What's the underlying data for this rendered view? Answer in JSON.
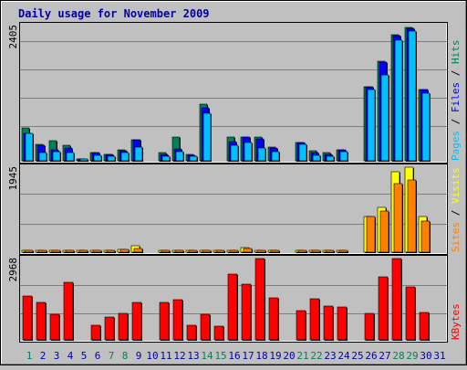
{
  "chart_data": [
    {
      "type": "bar",
      "title": "Daily usage for November 2009",
      "categories": [
        "1",
        "2",
        "3",
        "4",
        "5",
        "6",
        "7",
        "8",
        "9",
        "10",
        "11",
        "12",
        "13",
        "14",
        "15",
        "16",
        "17",
        "18",
        "19",
        "20",
        "21",
        "22",
        "23",
        "24",
        "25",
        "26",
        "27",
        "28",
        "29",
        "30",
        "31"
      ],
      "weekend_days": [
        "1",
        "7",
        "8",
        "14",
        "15",
        "21",
        "22",
        "28",
        "29"
      ],
      "ylabel_parts": [
        "Pages",
        "Files",
        "Hits"
      ],
      "max_label": "2405",
      "ylim": [
        0,
        2405
      ],
      "series": [
        {
          "name": "Hits",
          "color": "#00805c",
          "values": [
            590,
            290,
            360,
            280,
            12,
            150,
            110,
            200,
            370,
            0,
            140,
            430,
            110,
            1010,
            0,
            420,
            430,
            430,
            240,
            0,
            320,
            180,
            140,
            200,
            0,
            1320,
            1770,
            2240,
            2370,
            1260,
            0
          ]
        },
        {
          "name": "Files",
          "color": "#0000ff",
          "values": [
            480,
            270,
            200,
            230,
            12,
            140,
            110,
            180,
            370,
            0,
            110,
            210,
            100,
            940,
            0,
            340,
            420,
            390,
            230,
            0,
            320,
            150,
            120,
            200,
            0,
            1320,
            1760,
            2230,
            2360,
            1260,
            0
          ]
        },
        {
          "name": "Pages",
          "color": "#00c0ff",
          "values": [
            490,
            150,
            160,
            140,
            5,
            90,
            80,
            150,
            250,
            0,
            80,
            170,
            80,
            840,
            0,
            280,
            330,
            220,
            160,
            0,
            290,
            100,
            80,
            160,
            0,
            1270,
            1530,
            2150,
            2310,
            1200,
            0
          ]
        }
      ]
    },
    {
      "type": "bar",
      "categories": [
        "1",
        "2",
        "3",
        "4",
        "5",
        "6",
        "7",
        "8",
        "9",
        "10",
        "11",
        "12",
        "13",
        "14",
        "15",
        "16",
        "17",
        "18",
        "19",
        "20",
        "21",
        "22",
        "23",
        "24",
        "25",
        "26",
        "27",
        "28",
        "29",
        "30",
        "31"
      ],
      "ylabel_parts": [
        "Sites",
        "Visits"
      ],
      "max_label": "1945",
      "ylim": [
        0,
        1945
      ],
      "series": [
        {
          "name": "Visits",
          "color": "#ffff00",
          "values": [
            45,
            45,
            45,
            45,
            20,
            45,
            45,
            70,
            140,
            0,
            45,
            45,
            45,
            45,
            25,
            45,
            110,
            45,
            45,
            0,
            45,
            25,
            45,
            45,
            0,
            820,
            1020,
            1830,
            1945,
            820,
            0
          ]
        },
        {
          "name": "Sites",
          "color": "#ff8000",
          "values": [
            40,
            40,
            40,
            40,
            20,
            40,
            40,
            60,
            90,
            0,
            40,
            40,
            40,
            40,
            25,
            40,
            80,
            40,
            40,
            0,
            40,
            25,
            40,
            40,
            0,
            820,
            940,
            1560,
            1660,
            720,
            0
          ]
        }
      ]
    },
    {
      "type": "bar",
      "categories": [
        "1",
        "2",
        "3",
        "4",
        "5",
        "6",
        "7",
        "8",
        "9",
        "10",
        "11",
        "12",
        "13",
        "14",
        "15",
        "16",
        "17",
        "18",
        "19",
        "20",
        "21",
        "22",
        "23",
        "24",
        "25",
        "26",
        "27",
        "28",
        "29",
        "30",
        "31"
      ],
      "ylabel_parts": [
        "KBytes"
      ],
      "max_label": "2968",
      "ylim": [
        0,
        2968
      ],
      "series": [
        {
          "name": "KBytes",
          "color": "#ff0000",
          "values": [
            1610,
            1370,
            930,
            2090,
            0,
            520,
            820,
            960,
            1370,
            0,
            1370,
            1480,
            550,
            930,
            500,
            2390,
            2050,
            2968,
            1530,
            0,
            1060,
            1510,
            1220,
            1210,
            0,
            960,
            2310,
            2968,
            1930,
            990,
            0
          ]
        }
      ]
    }
  ]
}
